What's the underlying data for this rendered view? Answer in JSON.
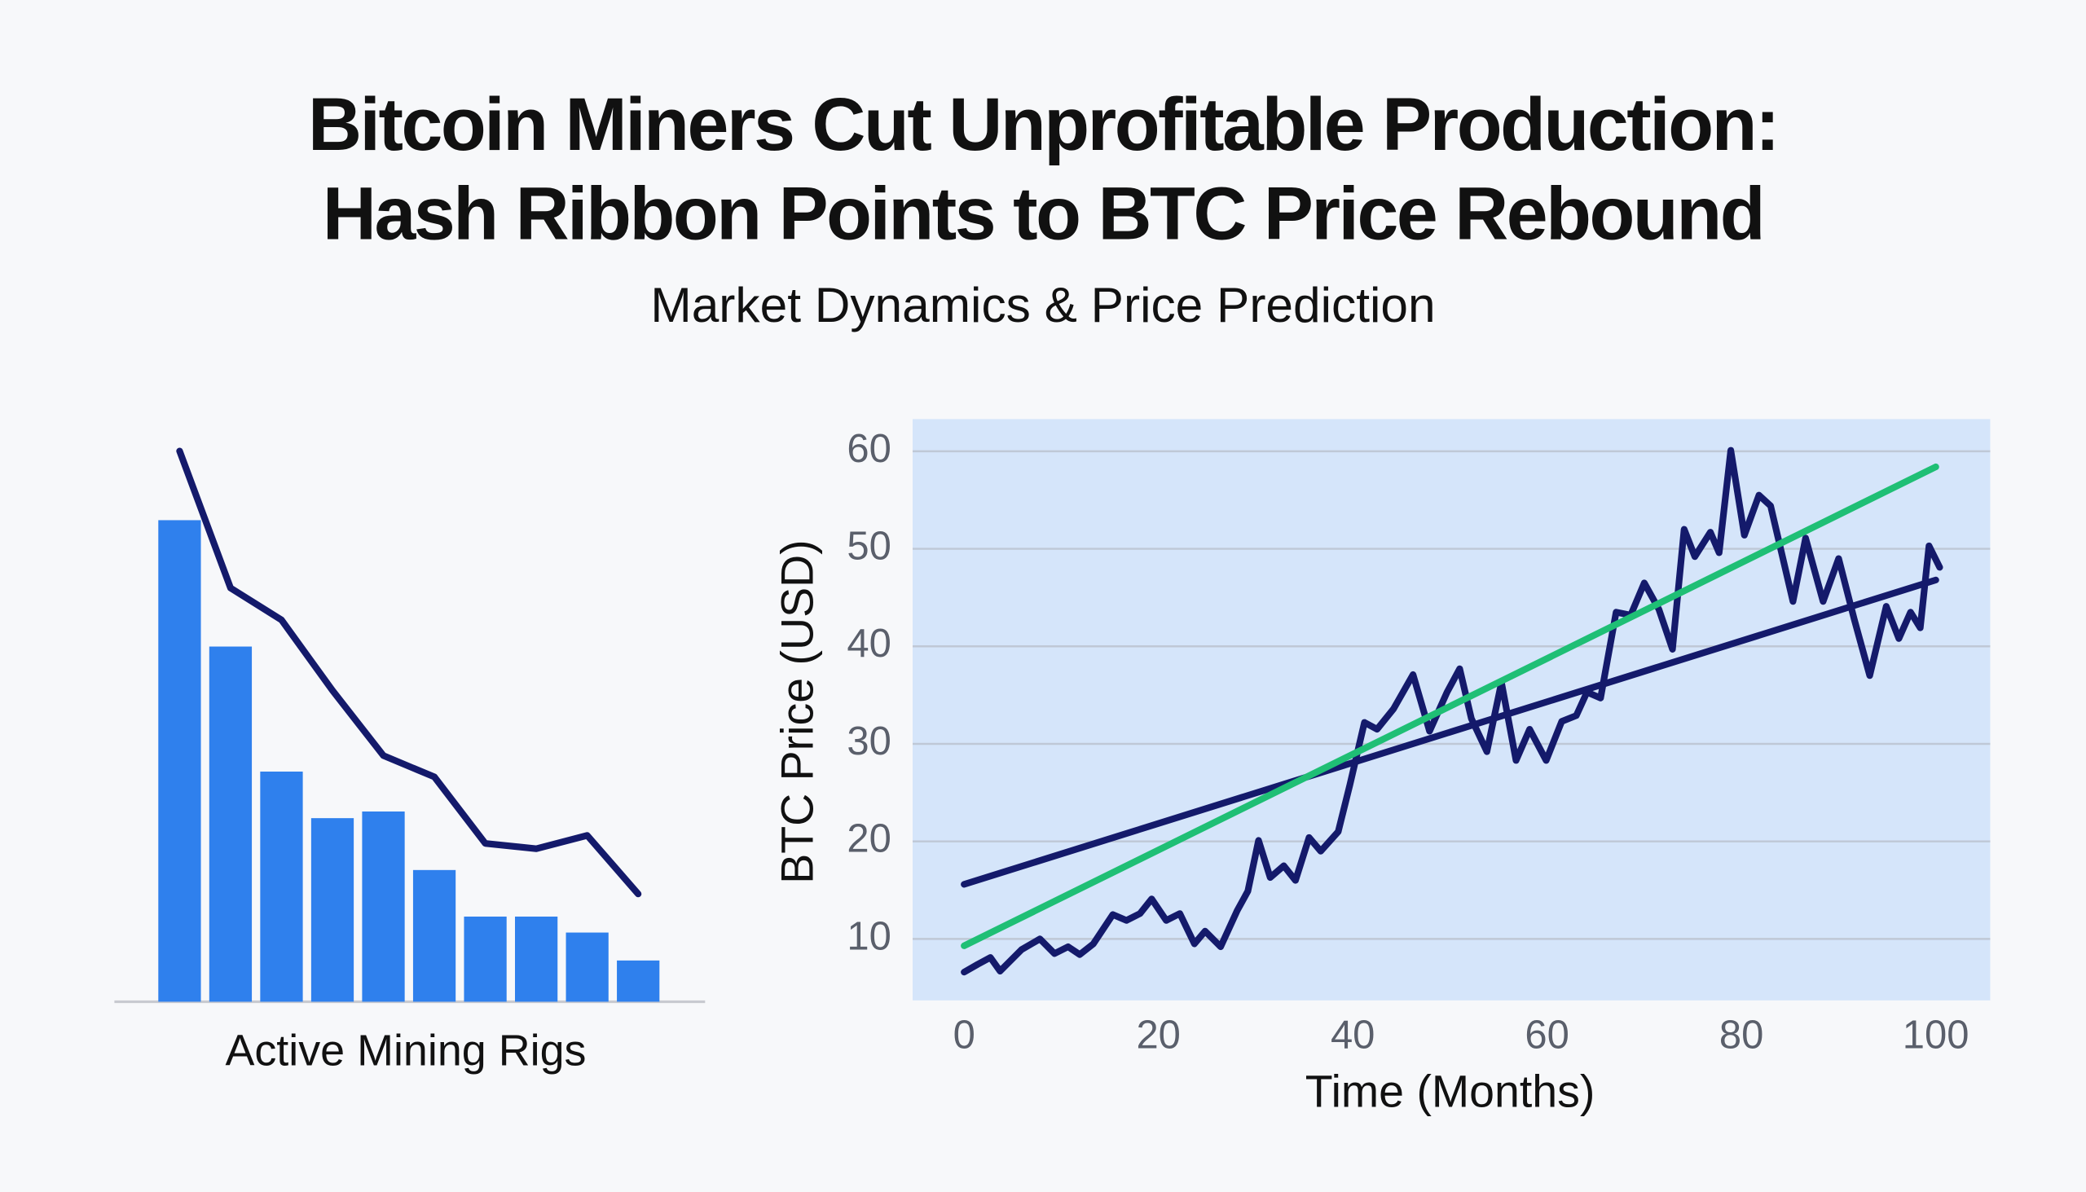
{
  "header": {
    "title_lines": [
      "Bitcoin Miners Cut Unprofitable Production:",
      "Hash Ribbon Points to BTC Price Rebound"
    ],
    "subtitle": "Market Dynamics & Price Prediction"
  },
  "chart_data": [
    {
      "type": "combo",
      "xlabel": "Active Mining Rigs",
      "ylim": [
        0,
        420
      ],
      "series": [
        {
          "type": "bar",
          "color": "#2f80ed",
          "values": [
            362,
            267,
            173,
            138,
            143,
            99,
            64,
            64,
            52,
            31
          ]
        },
        {
          "type": "line",
          "color": "#141a6b",
          "values": [
            414,
            311,
            287,
            234,
            185,
            169,
            119,
            115,
            125,
            81
          ]
        }
      ]
    },
    {
      "type": "line",
      "xlabel": "Time (Months)",
      "ylabel": "BTC Price (USD)",
      "xlim": [
        -5.3,
        105.6
      ],
      "ylim": [
        3.7,
        63.3
      ],
      "xticks": [
        0,
        20,
        40,
        60,
        80,
        100
      ],
      "yticks": [
        10,
        20,
        30,
        40,
        50,
        60
      ],
      "grid": true,
      "background": "#d5e5fa",
      "series": [
        {
          "color": "#141a6b",
          "x": [
            0,
            1.4,
            2.7,
            3.7,
            5.9,
            7.8,
            9.3,
            10.7,
            11.9,
            13.3,
            15.3,
            16.7,
            18.1,
            19.3,
            20.8,
            22.2,
            23.7,
            24.8,
            26.4,
            28.1,
            29.2,
            30.3,
            31.5,
            32.9,
            34.1,
            35.5,
            36.7,
            38.5,
            39.7,
            41.2,
            42.5,
            44.2,
            46.2,
            47.9,
            49.7,
            51,
            52.2,
            53.8,
            55.3,
            56.8,
            58.2,
            59.9,
            61.5,
            63,
            64.1,
            65.5,
            67.1,
            68.6,
            70,
            71.5,
            72.9,
            74.1,
            75.2,
            76.8,
            77.7,
            78.9,
            80.3,
            81.8,
            83,
            85.3,
            86.6,
            88.4,
            90,
            91.6,
            93.2,
            94.9,
            96.2,
            97.4,
            98.4,
            99.3,
            100.4
          ],
          "values": [
            6.6,
            7.4,
            8.1,
            6.7,
            8.9,
            10,
            8.5,
            9.2,
            8.4,
            9.5,
            12.5,
            11.9,
            12.6,
            14.1,
            11.9,
            12.6,
            9.5,
            10.8,
            9.2,
            12.9,
            14.9,
            20.1,
            16.3,
            17.5,
            16,
            20.4,
            19,
            21,
            25.8,
            32.2,
            31.5,
            33.6,
            37.1,
            31.3,
            35.3,
            37.7,
            32.6,
            29.2,
            36.3,
            28.3,
            31.5,
            28.3,
            32.3,
            32.9,
            35.3,
            34.7,
            43.5,
            43.2,
            46.5,
            43.8,
            39.7,
            52,
            49.2,
            51.7,
            49.6,
            60.1,
            51.4,
            55.5,
            54.4,
            44.6,
            51.1,
            44.6,
            49,
            42.8,
            37,
            44.1,
            40.8,
            43.5,
            41.9,
            50.3,
            48.1
          ]
        },
        {
          "color": "#141a6b",
          "x": [
            0,
            100
          ],
          "values": [
            15.6,
            46.8
          ]
        },
        {
          "color": "#1fbf75",
          "x": [
            0,
            100
          ],
          "values": [
            9.3,
            58.4
          ]
        }
      ]
    }
  ]
}
